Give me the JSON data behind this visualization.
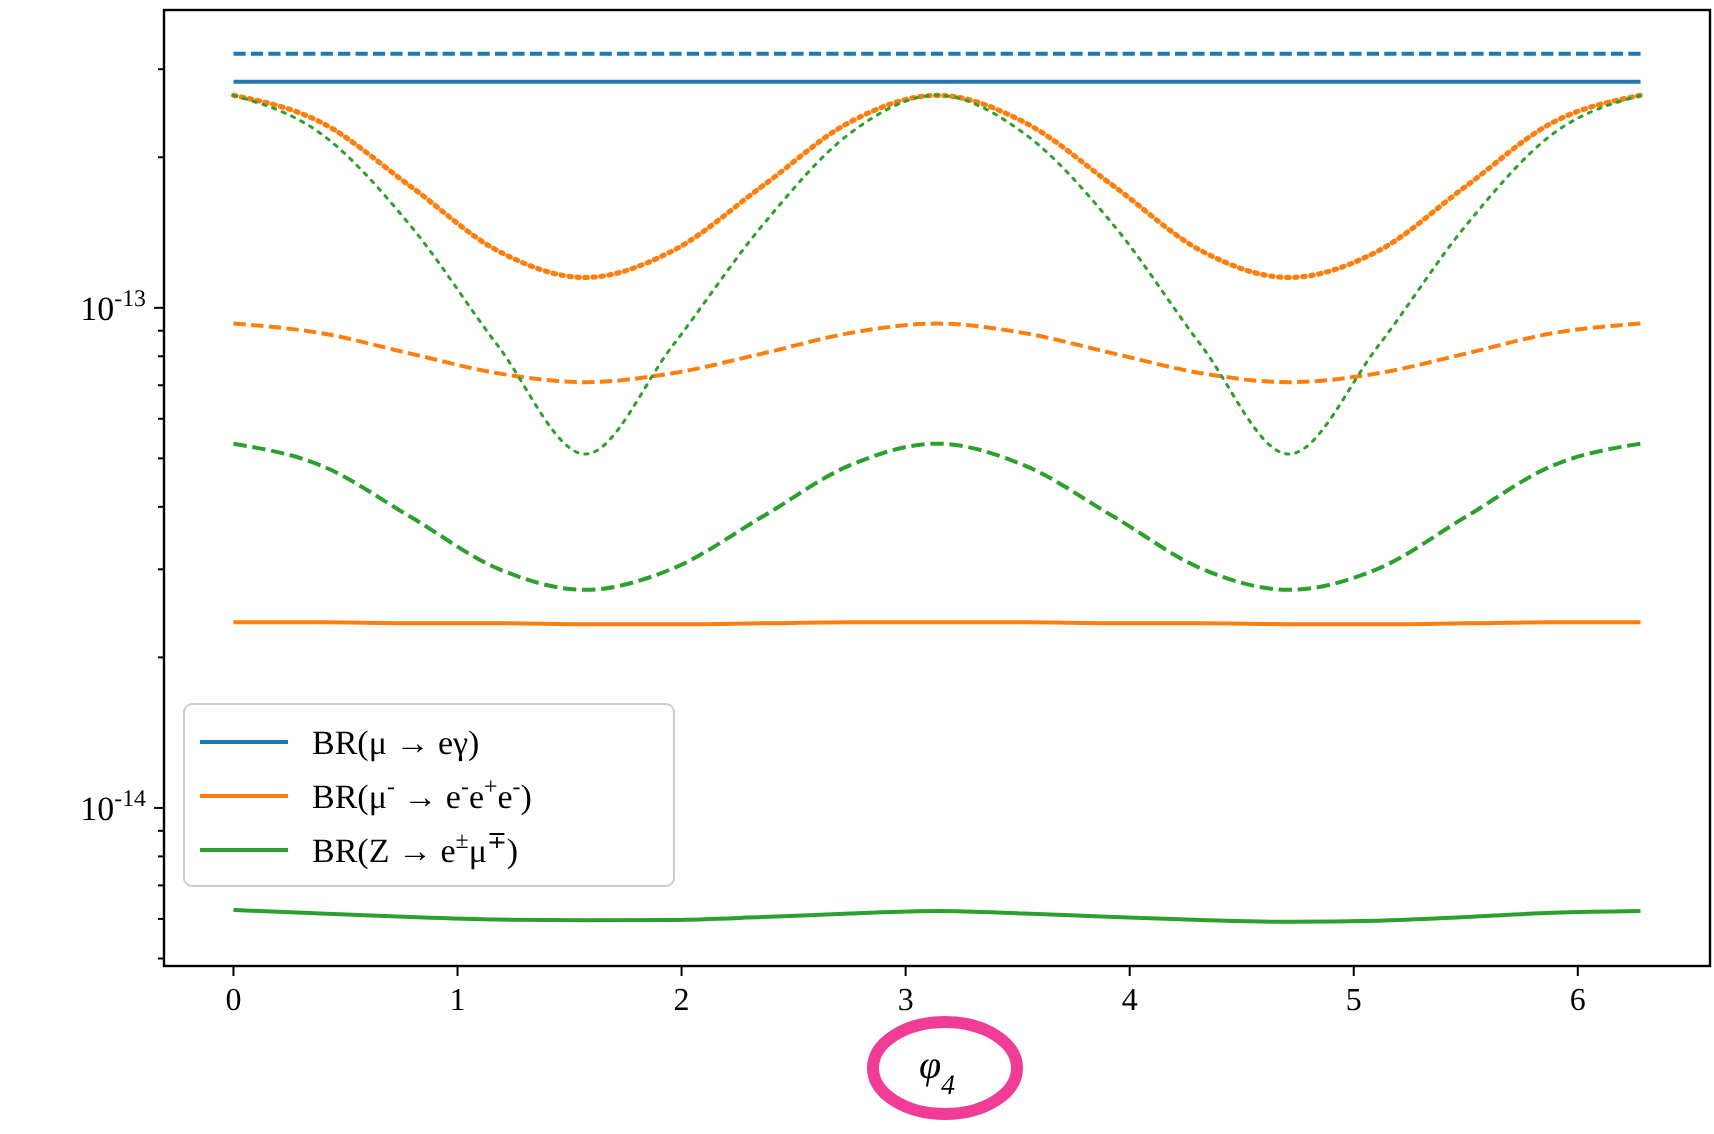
{
  "chart_data": {
    "type": "line",
    "xlabel": "φ$_{4}$",
    "legend": "bottom left",
    "log": "y",
    "x": [
      0,
      0.39,
      0.79,
      1.18,
      1.57,
      1.96,
      2.36,
      2.75,
      3.14,
      3.53,
      3.93,
      4.32,
      4.71,
      5.11,
      5.5,
      5.89,
      6.28
    ],
    "xlim": [
      -0.31,
      6.59
    ],
    "xticks": [
      0,
      1,
      2,
      3,
      4,
      5,
      6
    ],
    "ylim": [
      4.83e-15,
      3.94e-13
    ],
    "yticks": [
      {
        "value": 5e-15,
        "label": null
      },
      {
        "value": 6e-15,
        "label": null
      },
      {
        "value": 7e-15,
        "label": null
      },
      {
        "value": 8e-15,
        "label": null
      },
      {
        "value": 9e-15,
        "label": null
      },
      {
        "value": 1e-14,
        "label": "10$^{-14}$"
      },
      {
        "value": 2e-14,
        "label": null
      },
      {
        "value": 3e-14,
        "label": null
      },
      {
        "value": 4e-14,
        "label": null
      },
      {
        "value": 5e-14,
        "label": null
      },
      {
        "value": 6e-14,
        "label": null
      },
      {
        "value": 7e-14,
        "label": null
      },
      {
        "value": 8e-14,
        "label": null
      },
      {
        "value": 9e-14,
        "label": null
      },
      {
        "value": 1e-13,
        "label": "10$^{-13}$"
      },
      {
        "value": 2e-13,
        "label": null
      },
      {
        "value": 3e-13,
        "label": null
      }
    ],
    "series": [
      {
        "name": "BR(μ → eγ)",
        "color": "#1f77b4",
        "line_style": "solid",
        "values": [
          2.83e-13,
          2.83e-13,
          2.83e-13,
          2.83e-13,
          2.83e-13,
          2.83e-13,
          2.83e-13,
          2.83e-13,
          2.83e-13,
          2.83e-13,
          2.83e-13,
          2.83e-13,
          2.83e-13,
          2.83e-13,
          2.83e-13,
          2.83e-13,
          2.83e-13
        ]
      },
      {
        "name": "BR(μ$^{-}$ → e$^{-}$e$^{+}$e$^{-}$)",
        "color": "#ff7f0e",
        "line_style": "solid",
        "values": [
          2.35e-14,
          2.35e-14,
          2.34e-14,
          2.34e-14,
          2.33e-14,
          2.33e-14,
          2.34e-14,
          2.35e-14,
          2.35e-14,
          2.35e-14,
          2.34e-14,
          2.34e-14,
          2.33e-14,
          2.33e-14,
          2.34e-14,
          2.35e-14,
          2.35e-14
        ]
      },
      {
        "name": "BR(Z → e$^{±}$μ$^{∓}$)",
        "color": "#2ca02c",
        "line_style": "solid",
        "values": [
          6.25e-15,
          6.15e-15,
          6.05e-15,
          5.98e-15,
          5.96e-15,
          5.97e-15,
          6.05e-15,
          6.15e-15,
          6.22e-15,
          6.15e-15,
          6.05e-15,
          5.97e-15,
          5.92e-15,
          5.95e-15,
          6.05e-15,
          6.17e-15,
          6.22e-15
        ]
      },
      {
        "color": "#1f77b4",
        "line_style": "dashed",
        "values": [
          3.22e-13,
          3.22e-13,
          3.22e-13,
          3.22e-13,
          3.22e-13,
          3.22e-13,
          3.22e-13,
          3.22e-13,
          3.22e-13,
          3.22e-13,
          3.22e-13,
          3.22e-13,
          3.22e-13,
          3.22e-13,
          3.22e-13,
          3.22e-13,
          3.22e-13
        ]
      },
      {
        "color": "#ff7f0e",
        "line_style": "dashed",
        "values": [
          9.3e-14,
          8.9e-14,
          8.1e-14,
          7.4e-14,
          7.1e-14,
          7.4e-14,
          8.1e-14,
          8.9e-14,
          9.3e-14,
          8.9e-14,
          8.1e-14,
          7.4e-14,
          7.1e-14,
          7.4e-14,
          8.1e-14,
          8.9e-14,
          9.3e-14
        ]
      },
      {
        "color": "#2ca02c",
        "line_style": "dashed",
        "values": [
          5.35e-14,
          4.84e-14,
          3.82e-14,
          3.01e-14,
          2.73e-14,
          3.01e-14,
          3.82e-14,
          4.84e-14,
          5.35e-14,
          4.84e-14,
          3.82e-14,
          3.01e-14,
          2.73e-14,
          3.01e-14,
          3.82e-14,
          4.84e-14,
          5.35e-14
        ]
      },
      {
        "color": "#ff7f0e",
        "line_style": "dotted",
        "values": [
          2.66e-13,
          2.35e-13,
          1.75e-13,
          1.3e-13,
          1.15e-13,
          1.3e-13,
          1.75e-13,
          2.35e-13,
          2.66e-13,
          2.35e-13,
          1.75e-13,
          1.3e-13,
          1.15e-13,
          1.3e-13,
          1.75e-13,
          2.35e-13,
          2.66e-13
        ]
      },
      {
        "color": "#2ca02c",
        "line_style": "dotted",
        "values": [
          2.66e-13,
          2.23e-13,
          1.46e-13,
          8.4e-14,
          5.1e-14,
          8.4e-14,
          1.46e-13,
          2.23e-13,
          2.66e-13,
          2.23e-13,
          1.46e-13,
          8.4e-14,
          5.1e-14,
          8.4e-14,
          1.46e-13,
          2.23e-13,
          2.66e-13
        ]
      }
    ]
  }
}
